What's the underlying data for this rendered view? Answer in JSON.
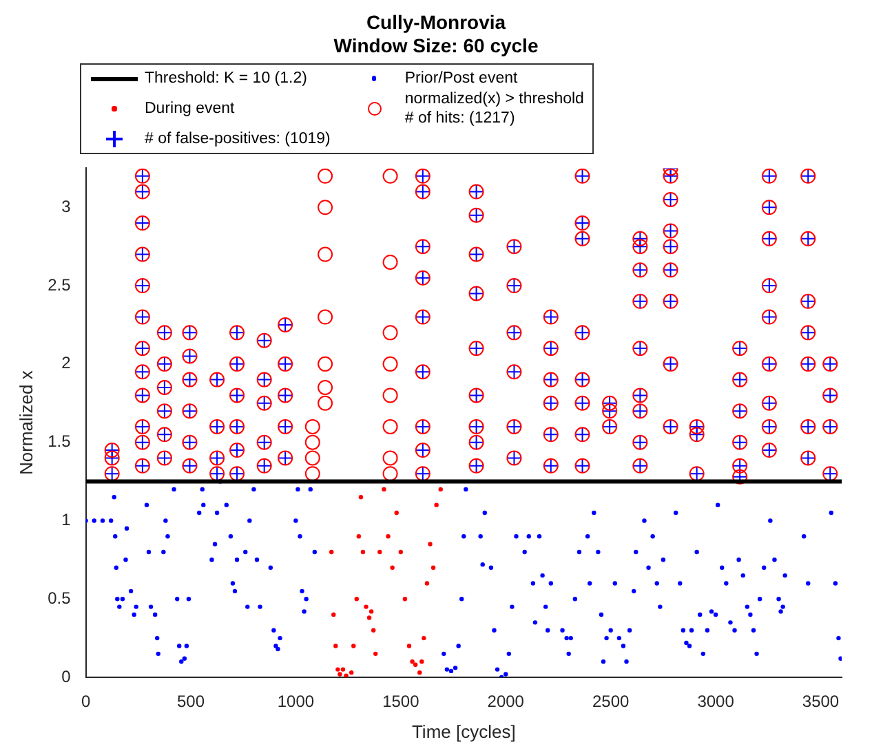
{
  "chart_data": {
    "type": "scatter",
    "title": "Cully-Monrovia",
    "subtitle": "Window Size: 60 cycle",
    "xlabel": "Time [cycles]",
    "ylabel": "Normalized x",
    "xlim": [
      0,
      3600
    ],
    "xticks": [
      0,
      500,
      1000,
      1500,
      2000,
      2500,
      3000,
      3500
    ],
    "ylim": [
      0,
      3.25
    ],
    "yticks": [
      0,
      0.5,
      1,
      1.5,
      2,
      2.5,
      3
    ],
    "grid": false,
    "legend": "top left",
    "series": [
      {
        "name": "Threshold: K = 10  (1.2)",
        "type": "line",
        "color": "#000000",
        "marker": "none",
        "x": [
          0,
          3600
        ],
        "values": [
          1.25,
          1.25
        ]
      },
      {
        "name": "Prior/Post event",
        "type": "scatter",
        "color": "#0000ff",
        "marker": "circle",
        "x": [
          0,
          40,
          80,
          120,
          135,
          140,
          145,
          150,
          160,
          175,
          190,
          195,
          215,
          230,
          240,
          290,
          300,
          310,
          330,
          340,
          345,
          370,
          380,
          390,
          420,
          435,
          445,
          455,
          470,
          480,
          490,
          540,
          555,
          560,
          600,
          615,
          625,
          640,
          670,
          690,
          700,
          710,
          720,
          760,
          770,
          780,
          800,
          815,
          830,
          880,
          895,
          905,
          915,
          925,
          1000,
          1010,
          1020,
          1030,
          1040,
          1050,
          1070,
          1090,
          1705,
          1720,
          1740,
          1760,
          1775,
          1790,
          1800,
          1810,
          1880,
          1890,
          1900,
          1930,
          1945,
          1960,
          1980,
          2000,
          2015,
          2030,
          2050,
          2090,
          2110,
          2130,
          2140,
          2160,
          2175,
          2190,
          2200,
          2215,
          2270,
          2290,
          2300,
          2310,
          2330,
          2350,
          2390,
          2400,
          2420,
          2440,
          2455,
          2465,
          2480,
          2500,
          2520,
          2540,
          2560,
          2575,
          2590,
          2610,
          2620,
          2660,
          2680,
          2700,
          2720,
          2735,
          2750,
          2810,
          2830,
          2845,
          2860,
          2875,
          2885,
          2910,
          2925,
          2940,
          2960,
          2980,
          3000,
          3010,
          3030,
          3050,
          3070,
          3090,
          3110,
          3130,
          3150,
          3165,
          3180,
          3195,
          3210,
          3230,
          3260,
          3280,
          3300,
          3310,
          3320,
          3330,
          3420,
          3440,
          3550,
          3570,
          3585,
          3595
        ],
        "values": [
          1,
          1,
          1,
          1,
          1.15,
          0.9,
          0.7,
          0.5,
          0.45,
          0.5,
          0.75,
          0.95,
          0.55,
          0.4,
          0.45,
          1.1,
          0.8,
          0.45,
          0.4,
          0.25,
          0.15,
          0.8,
          1,
          0.9,
          1.2,
          0.5,
          0.2,
          0.1,
          0.12,
          0.2,
          0.5,
          1.05,
          1.2,
          1.1,
          0.75,
          0.85,
          1.05,
          1.25,
          1.1,
          0.9,
          0.6,
          0.55,
          0.75,
          0.8,
          0.45,
          1,
          1.2,
          0.75,
          0.45,
          0.7,
          0.3,
          0.2,
          0.18,
          0.25,
          1,
          1.2,
          0.9,
          0.55,
          0.42,
          0.5,
          1.2,
          0.8,
          0.15,
          0.05,
          0.04,
          0.06,
          0.2,
          0.5,
          0.9,
          1.2,
          0.9,
          0.72,
          1.05,
          0.7,
          0.3,
          0.05,
          0,
          0.02,
          0.15,
          0.45,
          0.9,
          0.8,
          0.9,
          0.6,
          0.35,
          0.9,
          0.65,
          0.45,
          0.3,
          0.6,
          0.3,
          0.25,
          0.15,
          0.25,
          0.5,
          0.8,
          0.9,
          0.6,
          1.05,
          0.8,
          0.4,
          0.1,
          0.25,
          0.3,
          0.6,
          0.25,
          0.2,
          0.1,
          0.3,
          0.55,
          0.8,
          1,
          0.7,
          0.9,
          0.6,
          0.45,
          0.75,
          1.05,
          0.6,
          0.3,
          0.22,
          0.2,
          0.3,
          0.8,
          0.4,
          0.15,
          0.3,
          0.42,
          0.4,
          1.1,
          0.7,
          0.6,
          0.35,
          0.3,
          0.75,
          0.65,
          0.45,
          0.4,
          0.3,
          0.15,
          0.5,
          0.7,
          1,
          0.75,
          0.5,
          0.42,
          0.45,
          0.65,
          0.9,
          0.6,
          1.05,
          0.6,
          0.25,
          0.12
        ]
      },
      {
        "name": "During event",
        "type": "scatter",
        "color": "#ff0000",
        "marker": "circle",
        "x": [
          1170,
          1180,
          1190,
          1200,
          1210,
          1225,
          1240,
          1265,
          1275,
          1290,
          1300,
          1310,
          1320,
          1335,
          1350,
          1360,
          1370,
          1380,
          1400,
          1420,
          1440,
          1460,
          1480,
          1500,
          1520,
          1540,
          1555,
          1570,
          1590,
          1600,
          1610,
          1625,
          1640,
          1655,
          1670,
          1690
        ],
        "values": [
          0.8,
          0.4,
          0.2,
          0.05,
          0.02,
          0.05,
          0.01,
          0.03,
          0.2,
          0.5,
          0.9,
          1.15,
          0.8,
          0.45,
          0.38,
          0.42,
          0.3,
          0.15,
          0.8,
          1.2,
          0.9,
          0.7,
          1.05,
          0.8,
          0.5,
          0.2,
          0.1,
          0.08,
          0.03,
          0.1,
          0.25,
          0.6,
          0.85,
          0.7,
          1.1,
          1.2
        ]
      },
      {
        "name": "normalized(x) > threshold\n# of hits: (1217)",
        "type": "scatter",
        "color": "#ff0000",
        "marker": "circle",
        "x": [
          125,
          125,
          125,
          270,
          270,
          270,
          270,
          270,
          270,
          270,
          270,
          270,
          270,
          270,
          270,
          375,
          375,
          375,
          375,
          375,
          375,
          495,
          495,
          495,
          495,
          495,
          495,
          625,
          625,
          625,
          625,
          720,
          720,
          720,
          720,
          720,
          720,
          850,
          850,
          850,
          850,
          850,
          950,
          950,
          950,
          950,
          950,
          1080,
          1080,
          1080,
          1080,
          1140,
          1140,
          1140,
          1140,
          1140,
          1140,
          1140,
          1450,
          1450,
          1450,
          1450,
          1450,
          1450,
          1450,
          1450,
          1605,
          1605,
          1605,
          1605,
          1605,
          1605,
          1605,
          1605,
          1605,
          1860,
          1860,
          1860,
          1860,
          1860,
          1860,
          1860,
          1860,
          1860,
          2040,
          2040,
          2040,
          2040,
          2040,
          2040,
          2215,
          2215,
          2215,
          2215,
          2215,
          2215,
          2365,
          2365,
          2365,
          2365,
          2365,
          2365,
          2365,
          2365,
          2495,
          2495,
          2495,
          2640,
          2640,
          2640,
          2640,
          2640,
          2640,
          2640,
          2640,
          2640,
          2785,
          2785,
          2785,
          2785,
          2785,
          2785,
          2785,
          2785,
          2785,
          2910,
          2910,
          2910,
          3115,
          3115,
          3115,
          3115,
          3115,
          3115,
          3255,
          3255,
          3255,
          3255,
          3255,
          3255,
          3255,
          3255,
          3255,
          3440,
          3440,
          3440,
          3440,
          3440,
          3440,
          3440,
          3545,
          3545,
          3545,
          3545
        ],
        "values": [
          1.45,
          1.4,
          1.3,
          3.2,
          3.1,
          2.9,
          2.7,
          2.5,
          2.3,
          2.1,
          1.95,
          1.8,
          1.6,
          1.5,
          1.35,
          2.2,
          2,
          1.85,
          1.7,
          1.55,
          1.4,
          2.2,
          2.05,
          1.9,
          1.7,
          1.5,
          1.35,
          1.9,
          1.6,
          1.4,
          1.3,
          2.2,
          2,
          1.8,
          1.6,
          1.45,
          1.3,
          2.15,
          1.9,
          1.75,
          1.5,
          1.35,
          2.25,
          2,
          1.8,
          1.6,
          1.4,
          1.6,
          1.5,
          1.4,
          1.3,
          3.2,
          3,
          2.7,
          2.3,
          2,
          1.85,
          1.75,
          3.2,
          2.65,
          2.2,
          2,
          1.8,
          1.6,
          1.4,
          1.3,
          3.2,
          3.1,
          2.75,
          2.55,
          2.3,
          1.95,
          1.6,
          1.45,
          1.3,
          3.1,
          2.95,
          2.7,
          2.45,
          2.1,
          1.8,
          1.6,
          1.5,
          1.35,
          2.75,
          2.5,
          2.2,
          1.95,
          1.6,
          1.4,
          2.3,
          2.1,
          1.9,
          1.75,
          1.55,
          1.35,
          3.2,
          2.9,
          2.8,
          2.2,
          1.9,
          1.75,
          1.55,
          1.35,
          1.75,
          1.7,
          1.6,
          2.8,
          2.75,
          2.6,
          2.4,
          2.1,
          1.8,
          1.7,
          1.5,
          1.35,
          3.25,
          3.2,
          3.05,
          2.85,
          2.75,
          2.6,
          2.4,
          2,
          1.6,
          1.6,
          1.55,
          1.3,
          2.1,
          1.9,
          1.7,
          1.5,
          1.35,
          1.28,
          3.2,
          3,
          2.8,
          2.5,
          2.3,
          2,
          1.75,
          1.6,
          1.45,
          3.2,
          2.8,
          2.4,
          2.2,
          2,
          1.6,
          1.4,
          2,
          1.8,
          1.6,
          1.3
        ]
      },
      {
        "name": "# of false-positives: (1019)",
        "type": "scatter",
        "color": "#0000ff",
        "marker": "cross",
        "x": [
          125,
          125,
          125,
          270,
          270,
          270,
          270,
          270,
          270,
          270,
          270,
          270,
          270,
          270,
          270,
          375,
          375,
          375,
          375,
          375,
          375,
          495,
          495,
          495,
          495,
          495,
          495,
          625,
          625,
          625,
          625,
          720,
          720,
          720,
          720,
          720,
          720,
          850,
          850,
          850,
          850,
          850,
          950,
          950,
          950,
          950,
          950,
          1605,
          1605,
          1605,
          1605,
          1605,
          1605,
          1605,
          1605,
          1605,
          1860,
          1860,
          1860,
          1860,
          1860,
          1860,
          1860,
          1860,
          1860,
          2040,
          2040,
          2040,
          2040,
          2040,
          2040,
          2215,
          2215,
          2215,
          2215,
          2215,
          2215,
          2365,
          2365,
          2365,
          2365,
          2365,
          2365,
          2365,
          2365,
          2495,
          2495,
          2495,
          2640,
          2640,
          2640,
          2640,
          2640,
          2640,
          2640,
          2640,
          2640,
          2785,
          2785,
          2785,
          2785,
          2785,
          2785,
          2785,
          2785,
          2785,
          2910,
          2910,
          2910,
          3115,
          3115,
          3115,
          3115,
          3115,
          3115,
          3255,
          3255,
          3255,
          3255,
          3255,
          3255,
          3255,
          3255,
          3255,
          3440,
          3440,
          3440,
          3440,
          3440,
          3440,
          3440,
          3545,
          3545,
          3545,
          3545
        ],
        "values": [
          1.45,
          1.4,
          1.3,
          3.2,
          3.1,
          2.9,
          2.7,
          2.5,
          2.3,
          2.1,
          1.95,
          1.8,
          1.6,
          1.5,
          1.35,
          2.2,
          2,
          1.85,
          1.7,
          1.55,
          1.4,
          2.2,
          2.05,
          1.9,
          1.7,
          1.5,
          1.35,
          1.9,
          1.6,
          1.4,
          1.3,
          2.2,
          2,
          1.8,
          1.6,
          1.45,
          1.3,
          2.15,
          1.9,
          1.75,
          1.5,
          1.35,
          2.25,
          2,
          1.8,
          1.6,
          1.4,
          3.2,
          3.1,
          2.75,
          2.55,
          2.3,
          1.95,
          1.6,
          1.45,
          1.3,
          3.1,
          2.95,
          2.7,
          2.45,
          2.1,
          1.8,
          1.6,
          1.5,
          1.35,
          2.75,
          2.5,
          2.2,
          1.95,
          1.6,
          1.4,
          2.3,
          2.1,
          1.9,
          1.75,
          1.55,
          1.35,
          3.2,
          2.9,
          2.8,
          2.2,
          1.9,
          1.75,
          1.55,
          1.35,
          1.75,
          1.7,
          1.6,
          2.8,
          2.75,
          2.6,
          2.4,
          2.1,
          1.8,
          1.7,
          1.5,
          1.35,
          3.25,
          3.2,
          3.05,
          2.85,
          2.75,
          2.6,
          2.4,
          2,
          1.6,
          1.6,
          1.55,
          1.3,
          2.1,
          1.9,
          1.7,
          1.5,
          1.35,
          1.28,
          3.2,
          3,
          2.8,
          2.5,
          2.3,
          2,
          1.75,
          1.6,
          1.45,
          3.2,
          2.8,
          2.4,
          2.2,
          2,
          1.6,
          1.4,
          2,
          1.8,
          1.6,
          1.3
        ]
      }
    ]
  }
}
